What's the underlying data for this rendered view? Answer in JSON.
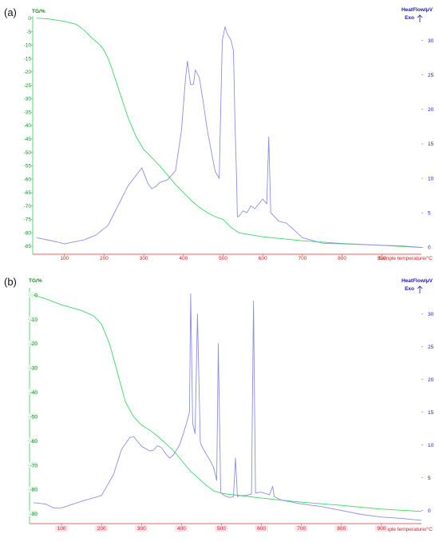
{
  "figure": {
    "panels": [
      {
        "panel_label": "(a)",
        "left_axis_title": "TG/%",
        "right_axis_title": "HeatFlow/μV",
        "exo_label": "Exo",
        "x_axis_title": "Sample temperature/°C"
      },
      {
        "panel_label": "(b)",
        "left_axis_title": "TG/%",
        "right_axis_title": "HeatFlow/μV",
        "exo_label": "Exo",
        "x_axis_title": "Sample temperature/°C"
      }
    ]
  },
  "chart_data": [
    {
      "type": "line",
      "xlabel": "Sample temperature/°C",
      "ylabel": "TG/%",
      "y2label": "HeatFlow/μV",
      "xlim": [
        20,
        1000
      ],
      "ylim": [
        -88,
        2
      ],
      "y2lim": [
        -1,
        34
      ],
      "x_ticks": [
        100,
        200,
        300,
        400,
        500,
        600,
        700,
        800,
        900
      ],
      "y_ticks": [
        0,
        -5,
        -10,
        -15,
        -20,
        -25,
        -30,
        -35,
        -40,
        -45,
        -50,
        -55,
        -60,
        -65,
        -70,
        -75,
        -80,
        -85
      ],
      "y2_ticks": [
        0,
        5,
        10,
        15,
        20,
        25,
        30
      ],
      "series": [
        {
          "axis": "left",
          "color": "#3cd66a",
          "x": [
            30,
            60,
            100,
            130,
            150,
            170,
            190,
            200,
            210,
            220,
            240,
            260,
            280,
            300,
            320,
            340,
            360,
            380,
            400,
            420,
            440,
            460,
            480,
            500,
            520,
            540,
            600,
            700,
            800,
            900,
            1000
          ],
          "y": [
            0,
            -0.3,
            -1.2,
            -2.3,
            -4.5,
            -7.5,
            -10,
            -12,
            -15,
            -19,
            -28,
            -37,
            -44,
            -49,
            -52,
            -55,
            -58.5,
            -62,
            -65,
            -68,
            -70.5,
            -72.5,
            -74,
            -75,
            -78,
            -80,
            -81.5,
            -83,
            -84,
            -84.7,
            -85.5
          ]
        },
        {
          "axis": "right",
          "color": "#8c8ee6",
          "x": [
            30,
            80,
            100,
            150,
            180,
            210,
            240,
            260,
            280,
            295,
            310,
            320,
            330,
            340,
            360,
            380,
            395,
            405,
            410,
            418,
            425,
            430,
            440,
            450,
            460,
            470,
            480,
            490,
            498,
            505,
            510,
            520,
            526,
            530,
            534,
            536,
            540,
            550,
            560,
            570,
            580,
            590,
            600,
            610,
            615,
            620,
            640,
            660,
            700,
            750,
            800,
            850,
            900,
            950,
            1000
          ],
          "y": [
            1.4,
            0.8,
            0.5,
            1.1,
            1.8,
            3.2,
            6.6,
            8.9,
            10.4,
            11.5,
            9.3,
            8.5,
            8.8,
            9.4,
            9.8,
            11.1,
            17,
            24.3,
            27,
            23.6,
            23.6,
            25.7,
            24.6,
            21,
            17,
            14,
            11,
            10,
            30,
            32,
            31,
            30,
            28.5,
            18,
            10,
            4.4,
            4.5,
            5.3,
            5,
            6,
            5.6,
            6.3,
            7,
            6.3,
            16,
            5,
            3.8,
            3.5,
            1.4,
            0.6,
            0.5,
            0.4,
            0.3,
            0.2,
            0
          ]
        }
      ]
    },
    {
      "type": "line",
      "xlabel": "Sample temperature/°C",
      "ylabel": "TG/%",
      "y2label": "HeatFlow/μV",
      "xlim": [
        20,
        1000
      ],
      "ylim": [
        -94,
        3
      ],
      "y2lim": [
        -2,
        34
      ],
      "x_ticks": [
        100,
        200,
        300,
        400,
        500,
        600,
        700,
        800,
        900
      ],
      "y_ticks": [
        0,
        -10,
        -20,
        -30,
        -40,
        -50,
        -60,
        -70,
        -80,
        -90
      ],
      "y2_ticks": [
        0,
        5,
        10,
        15,
        20,
        25,
        30
      ],
      "series": [
        {
          "axis": "left",
          "color": "#3cd66a",
          "x": [
            30,
            60,
            100,
            150,
            180,
            200,
            220,
            240,
            260,
            280,
            300,
            320,
            340,
            360,
            380,
            400,
            420,
            440,
            460,
            480,
            500,
            520,
            550,
            600,
            700,
            800,
            900,
            1000
          ],
          "y": [
            0,
            -1.5,
            -4,
            -6.3,
            -8.5,
            -12,
            -20,
            -32,
            -44,
            -50,
            -53.5,
            -55.5,
            -58,
            -61,
            -64,
            -68,
            -72,
            -75,
            -78,
            -80.5,
            -81.5,
            -82,
            -82.5,
            -83.5,
            -85.2,
            -86.5,
            -88,
            -89
          ]
        },
        {
          "axis": "right",
          "color": "#8c8ee6",
          "x": [
            30,
            60,
            80,
            100,
            150,
            200,
            230,
            250,
            270,
            280,
            300,
            320,
            330,
            340,
            350,
            360,
            370,
            380,
            395,
            405,
            412,
            420,
            423,
            428,
            434,
            440,
            447,
            450,
            460,
            470,
            480,
            488,
            492,
            498,
            510,
            520,
            530,
            535,
            540,
            545,
            560,
            575,
            580,
            585,
            600,
            620,
            628,
            632,
            650,
            700,
            750,
            800,
            850,
            900,
            950,
            1000
          ],
          "y": [
            1.2,
            1,
            0.4,
            0.4,
            1.4,
            2.3,
            5.5,
            9.3,
            11.1,
            11.3,
            9.8,
            9.1,
            9.2,
            9.9,
            9.6,
            8.7,
            8,
            8.5,
            10,
            11.8,
            13.2,
            15,
            33.1,
            13.3,
            11.7,
            30,
            10.5,
            9.9,
            8.8,
            7.8,
            6.6,
            4.6,
            25.5,
            2.7,
            2.2,
            2,
            2.1,
            8,
            2.1,
            2.3,
            2.3,
            2.5,
            32,
            2.7,
            2.8,
            2.4,
            3.7,
            2.1,
            1.6,
            1,
            0.6,
            0,
            -0.6,
            -1,
            -1.2,
            -1.5
          ]
        }
      ]
    }
  ]
}
